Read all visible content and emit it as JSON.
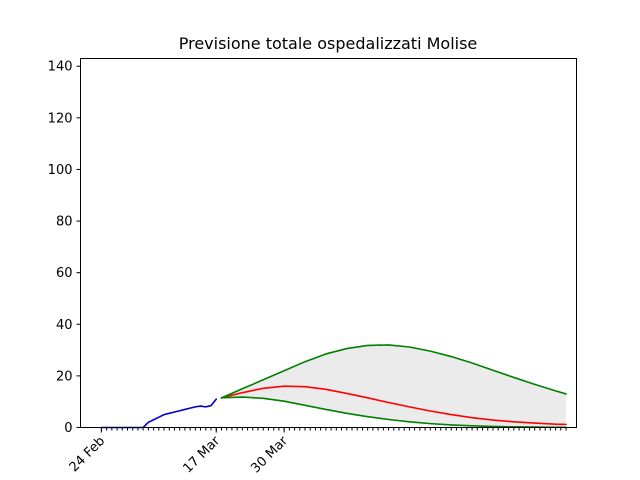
{
  "chart_data": {
    "type": "line",
    "title": "Previsione totale ospedalizzati Molise",
    "xlabel": "",
    "ylabel": "",
    "ylim": [
      0,
      143
    ],
    "xlim": [
      "2020-02-20",
      "2020-05-25"
    ],
    "yticks": [
      0,
      20,
      40,
      60,
      80,
      100,
      120,
      140
    ],
    "xticks": [
      {
        "date": "2020-02-24",
        "label": "24 Feb"
      },
      {
        "date": "2020-03-17",
        "label": "17 Mar"
      },
      {
        "date": "2020-03-30",
        "label": "30 Mar"
      }
    ],
    "minor_tick_start": "2020-02-24",
    "minor_tick_end": "2020-05-23",
    "grid": false,
    "colors": {
      "observed": "#0000cc",
      "forecast": "#ff0000",
      "bounds": "#008000",
      "band": "#ebebeb"
    },
    "series": [
      {
        "role": "observed",
        "x": [
          "2020-02-24",
          "2020-02-26",
          "2020-02-28",
          "2020-03-01",
          "2020-03-03",
          "2020-03-04",
          "2020-03-05",
          "2020-03-06",
          "2020-03-07",
          "2020-03-08",
          "2020-03-09",
          "2020-03-10",
          "2020-03-11",
          "2020-03-12",
          "2020-03-13",
          "2020-03-14",
          "2020-03-15",
          "2020-03-16",
          "2020-03-17"
        ],
        "values": [
          0,
          0,
          0,
          0,
          0,
          2,
          3,
          4,
          5,
          5.5,
          6,
          6.5,
          7,
          7.5,
          8,
          8.3,
          8,
          8.5,
          11
        ]
      },
      {
        "role": "forecast",
        "x": [
          "2020-03-18",
          "2020-03-22",
          "2020-03-26",
          "2020-03-30",
          "2020-04-03",
          "2020-04-07",
          "2020-04-11",
          "2020-04-15",
          "2020-04-19",
          "2020-04-23",
          "2020-04-27",
          "2020-05-01",
          "2020-05-05",
          "2020-05-09",
          "2020-05-13",
          "2020-05-17",
          "2020-05-21",
          "2020-05-23"
        ],
        "values": [
          11.5,
          13.5,
          15.2,
          16,
          15.8,
          14.8,
          13.2,
          11.5,
          9.7,
          8,
          6.4,
          5,
          3.8,
          2.9,
          2.2,
          1.7,
          1.3,
          1.2
        ]
      },
      {
        "role": "upper",
        "x": [
          "2020-03-18",
          "2020-03-22",
          "2020-03-26",
          "2020-03-30",
          "2020-04-03",
          "2020-04-07",
          "2020-04-11",
          "2020-04-15",
          "2020-04-19",
          "2020-04-23",
          "2020-04-27",
          "2020-05-01",
          "2020-05-05",
          "2020-05-09",
          "2020-05-13",
          "2020-05-17",
          "2020-05-21",
          "2020-05-23"
        ],
        "values": [
          11.5,
          15,
          18.5,
          22,
          25.5,
          28.5,
          30.6,
          31.8,
          32,
          31.2,
          29.6,
          27.5,
          25,
          22.2,
          19.4,
          16.7,
          14.2,
          13
        ]
      },
      {
        "role": "lower",
        "x": [
          "2020-03-18",
          "2020-03-22",
          "2020-03-26",
          "2020-03-30",
          "2020-04-03",
          "2020-04-07",
          "2020-04-11",
          "2020-04-15",
          "2020-04-19",
          "2020-04-23",
          "2020-04-27",
          "2020-05-01",
          "2020-05-05",
          "2020-05-09",
          "2020-05-13",
          "2020-05-17",
          "2020-05-21",
          "2020-05-23"
        ],
        "values": [
          11.5,
          11.8,
          11.3,
          10.2,
          8.6,
          7,
          5.5,
          4.2,
          3.1,
          2.2,
          1.5,
          1,
          0.65,
          0.4,
          0.25,
          0.15,
          0.1,
          0.08
        ]
      }
    ]
  }
}
